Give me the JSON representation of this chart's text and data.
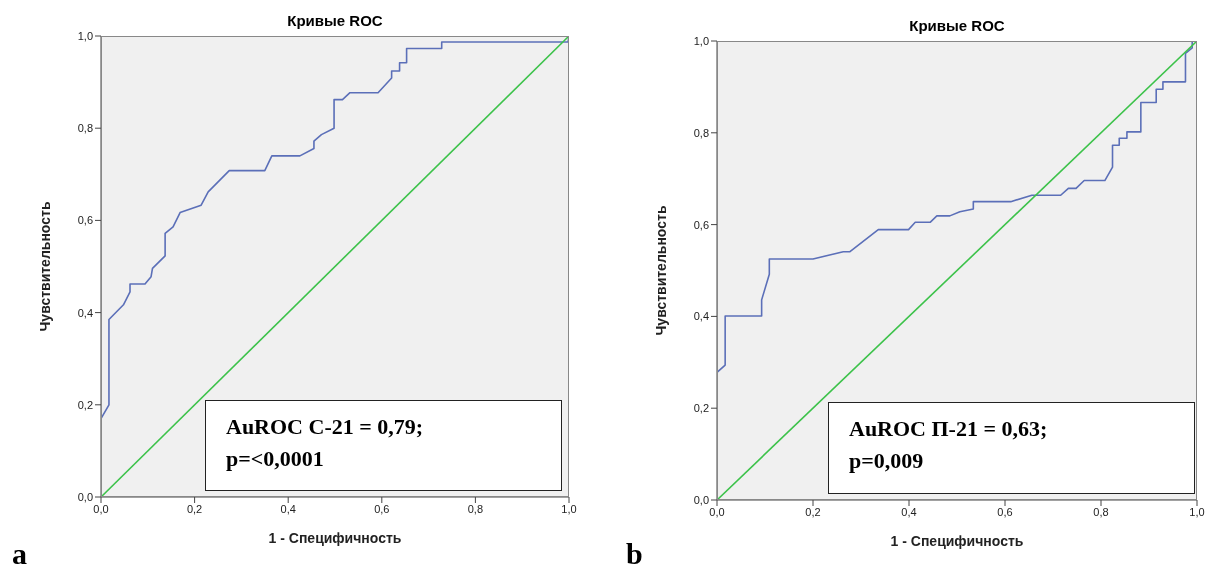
{
  "chart_data": [
    {
      "type": "line",
      "title": "Кривые ROC",
      "xlabel": "1 - Специфичность",
      "ylabel": "Чувствительность",
      "xlim": [
        0,
        1
      ],
      "ylim": [
        0,
        1
      ],
      "xticks": [
        {
          "value": 0,
          "label": "0,0"
        },
        {
          "value": 0.2,
          "label": "0,2"
        },
        {
          "value": 0.4,
          "label": "0,4"
        },
        {
          "value": 0.6,
          "label": "0,6"
        },
        {
          "value": 0.8,
          "label": "0,8"
        },
        {
          "value": 1,
          "label": "1,0"
        }
      ],
      "yticks": [
        {
          "value": 0,
          "label": "0,0"
        },
        {
          "value": 0.2,
          "label": "0,2"
        },
        {
          "value": 0.4,
          "label": "0,4"
        },
        {
          "value": 0.6,
          "label": "0,6"
        },
        {
          "value": 0.8,
          "label": "0,8"
        },
        {
          "value": 1,
          "label": "1,0"
        }
      ],
      "grid": false,
      "marker": "none",
      "line_style": "solid",
      "series": [
        {
          "color": "#5b6fb8",
          "x": [
            0,
            0,
            0.017,
            0.017,
            0.048,
            0.062,
            0.062,
            0.094,
            0.107,
            0.11,
            0.137,
            0.137,
            0.154,
            0.169,
            0.214,
            0.229,
            0.274,
            0.35,
            0.365,
            0.425,
            0.455,
            0.455,
            0.471,
            0.498,
            0.498,
            0.516,
            0.532,
            0.592,
            0.621,
            0.621,
            0.638,
            0.638,
            0.653,
            0.653,
            0.728,
            0.728,
            0.998,
            1
          ],
          "values": [
            0,
            0.17,
            0.2,
            0.385,
            0.417,
            0.445,
            0.462,
            0.462,
            0.478,
            0.496,
            0.523,
            0.572,
            0.586,
            0.617,
            0.633,
            0.662,
            0.708,
            0.708,
            0.74,
            0.74,
            0.756,
            0.772,
            0.786,
            0.8,
            0.862,
            0.862,
            0.877,
            0.877,
            0.909,
            0.924,
            0.924,
            0.942,
            0.942,
            0.973,
            0.973,
            0.987,
            0.987,
            1
          ]
        },
        {
          "color": "#3cc24a",
          "x": [
            0,
            1
          ],
          "values": [
            0,
            1
          ]
        }
      ],
      "annotations": [
        "AuROC С-21 = 0,79;",
        "p=<0,0001",
        "a"
      ]
    },
    {
      "type": "line",
      "title": "Кривые ROC",
      "xlabel": "1 - Специфичность",
      "ylabel": "Чувствительность",
      "xlim": [
        0,
        1
      ],
      "ylim": [
        0,
        1
      ],
      "xticks": [
        {
          "value": 0,
          "label": "0,0"
        },
        {
          "value": 0.2,
          "label": "0,2"
        },
        {
          "value": 0.4,
          "label": "0,4"
        },
        {
          "value": 0.6,
          "label": "0,6"
        },
        {
          "value": 0.8,
          "label": "0,8"
        },
        {
          "value": 1,
          "label": "1,0"
        }
      ],
      "yticks": [
        {
          "value": 0,
          "label": "0,0"
        },
        {
          "value": 0.2,
          "label": "0,2"
        },
        {
          "value": 0.4,
          "label": "0,4"
        },
        {
          "value": 0.6,
          "label": "0,6"
        },
        {
          "value": 0.8,
          "label": "0,8"
        },
        {
          "value": 1,
          "label": "1,0"
        }
      ],
      "grid": false,
      "marker": "none",
      "line_style": "solid",
      "series": [
        {
          "color": "#5b6fb8",
          "x": [
            0,
            0,
            0.017,
            0.017,
            0.093,
            0.093,
            0.109,
            0.109,
            0.2,
            0.263,
            0.277,
            0.336,
            0.399,
            0.413,
            0.444,
            0.458,
            0.485,
            0.506,
            0.534,
            0.534,
            0.612,
            0.656,
            0.716,
            0.732,
            0.748,
            0.765,
            0.808,
            0.824,
            0.824,
            0.838,
            0.838,
            0.854,
            0.854,
            0.883,
            0.883,
            0.915,
            0.915,
            0.929,
            0.929,
            0.976,
            0.976,
            0.99,
            0.99,
            1
          ],
          "values": [
            0,
            0.278,
            0.294,
            0.401,
            0.401,
            0.436,
            0.492,
            0.525,
            0.525,
            0.541,
            0.541,
            0.589,
            0.589,
            0.605,
            0.605,
            0.619,
            0.619,
            0.628,
            0.634,
            0.65,
            0.65,
            0.664,
            0.664,
            0.679,
            0.679,
            0.696,
            0.696,
            0.725,
            0.773,
            0.773,
            0.788,
            0.788,
            0.802,
            0.802,
            0.866,
            0.866,
            0.895,
            0.895,
            0.911,
            0.911,
            0.973,
            0.985,
            1,
            1
          ]
        },
        {
          "color": "#3cc24a",
          "x": [
            0,
            1
          ],
          "values": [
            0,
            1
          ]
        }
      ],
      "annotations": [
        "AuROC П-21 = 0,63;",
        "p=0,009",
        "b"
      ]
    }
  ]
}
